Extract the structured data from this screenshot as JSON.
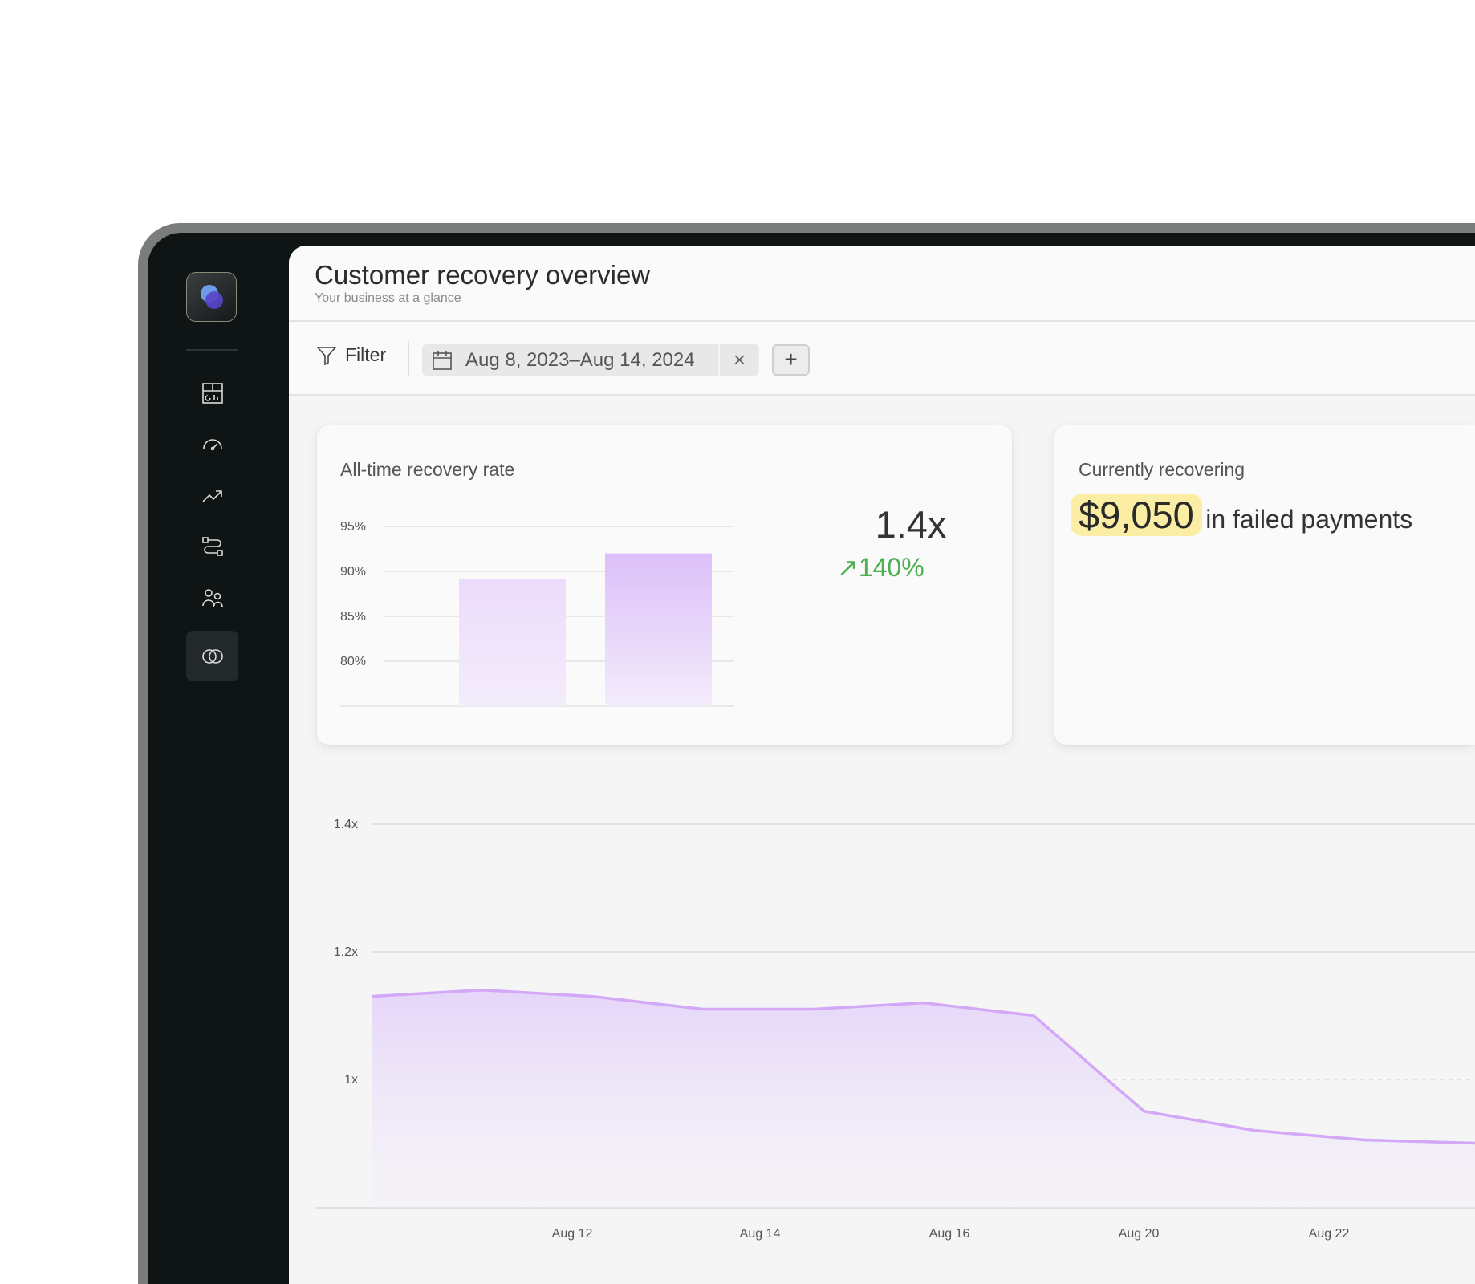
{
  "header": {
    "title": "Customer recovery overview",
    "subtitle": "Your business at a glance"
  },
  "toolbar": {
    "filter_label": "Filter",
    "date_range": "Aug 8, 2023–Aug 14, 2024",
    "clear_icon": "×",
    "add_label": "+"
  },
  "sidebar": {
    "items": [
      {
        "icon": "dashboard-icon"
      },
      {
        "icon": "gauge-icon"
      },
      {
        "icon": "trend-up-icon"
      },
      {
        "icon": "workflow-icon"
      },
      {
        "icon": "users-icon"
      },
      {
        "icon": "overlap-circles-icon",
        "active": true
      }
    ]
  },
  "recovery_card": {
    "title": "All-time recovery rate",
    "multiplier": "1.4x",
    "change": "140%",
    "change_color": "#4caf50"
  },
  "recovering_card": {
    "title": "Currently recovering",
    "amount": "$9,050",
    "suffix": "in failed payments",
    "highlight_color": "#fbeea4"
  },
  "chart_data": [
    {
      "type": "bar",
      "categories": [
        "",
        ""
      ],
      "values": [
        89.2,
        92
      ],
      "ylim": [
        75,
        95
      ],
      "yticks": [
        "95%",
        "90%",
        "85%",
        "80%"
      ],
      "ytick_values": [
        95,
        90,
        85,
        80
      ],
      "grid": true,
      "colors": [
        "#ecdcfb",
        "#dcbff9"
      ]
    },
    {
      "type": "area",
      "values": [
        1.13,
        1.14,
        1.13,
        1.11,
        1.11,
        1.12,
        1.1,
        0.95,
        0.92,
        0.905,
        0.9
      ],
      "yticks": [
        "1.4x",
        "1.2x",
        "1x"
      ],
      "ytick_values": [
        1.4,
        1.2,
        1.0
      ],
      "xticks": [
        "Aug 12",
        "Aug 14",
        "Aug 16",
        "Aug 20",
        "Aug 22"
      ],
      "ylim": [
        0.8,
        1.4
      ],
      "grid": true,
      "color": "#d2a8f7"
    }
  ]
}
